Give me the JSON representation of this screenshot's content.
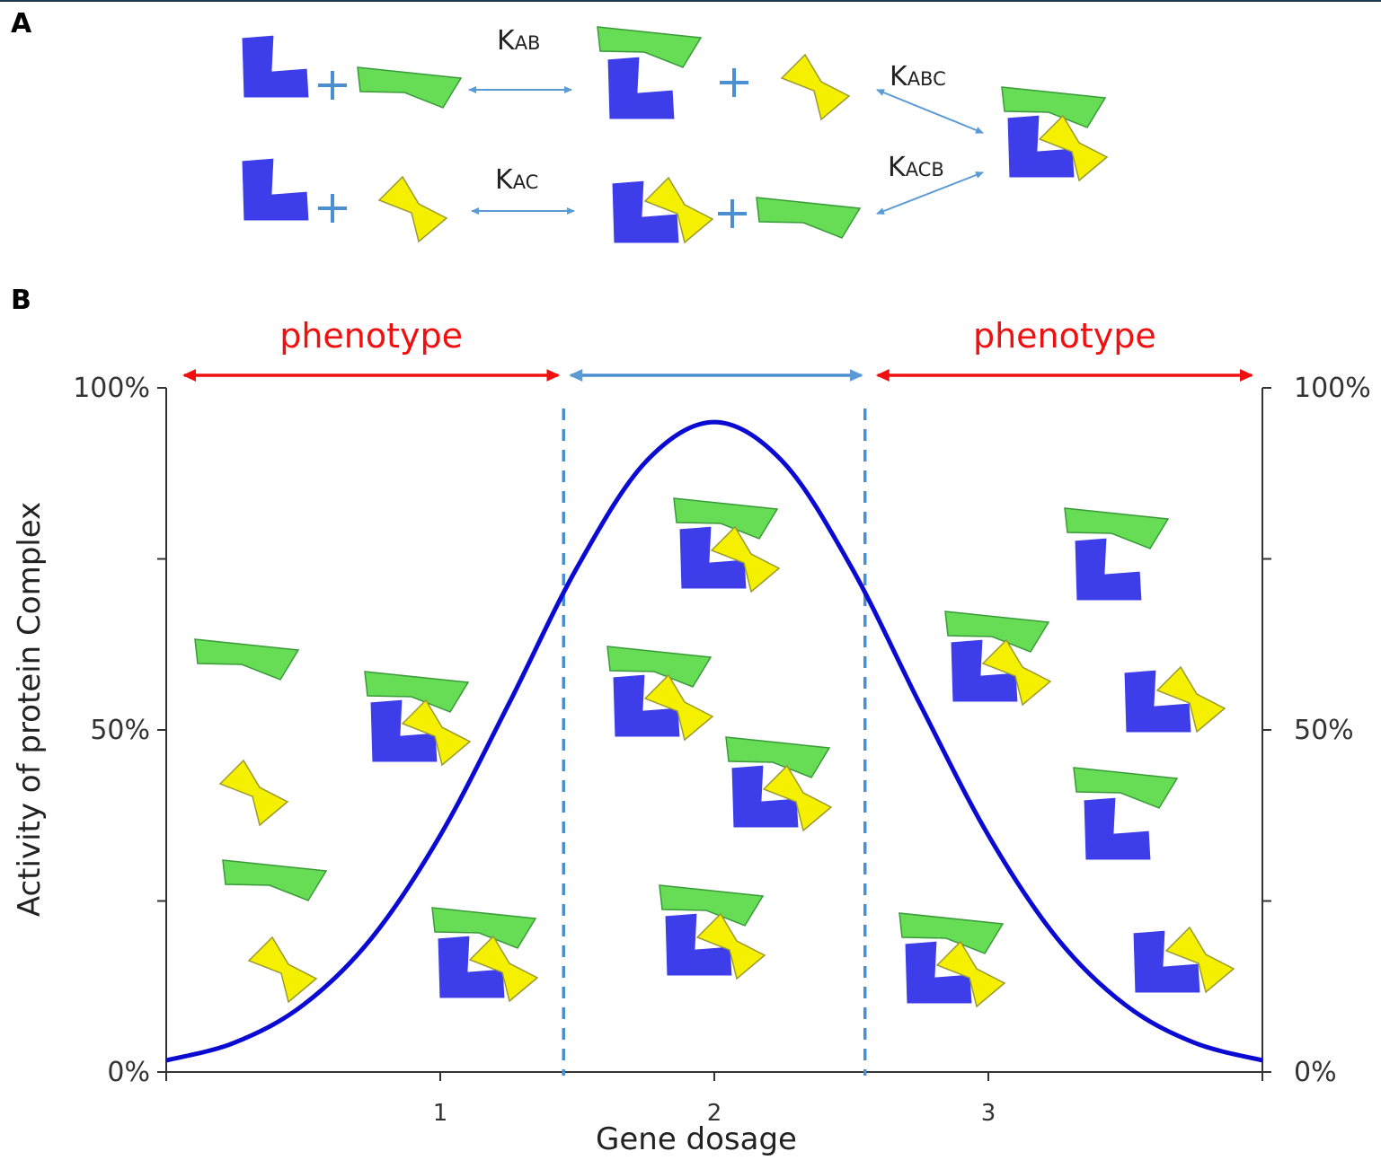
{
  "panel_a": {
    "label": "A",
    "rate_constants": [
      {
        "symbol": "K",
        "subscript": "AB"
      },
      {
        "symbol": "K",
        "subscript": "ABC"
      },
      {
        "symbol": "K",
        "subscript": "AC"
      },
      {
        "symbol": "K",
        "subscript": "ACB"
      }
    ]
  },
  "chart_data": {
    "type": "line",
    "panel_label": "B",
    "xlabel": "Gene dosage",
    "ylabel": "Activity of protein Complex",
    "x": [
      0,
      0.25,
      0.5,
      0.75,
      1,
      1.25,
      1.5,
      1.75,
      2,
      2.25,
      2.5,
      2.75,
      3,
      3.25,
      3.5,
      3.75,
      4
    ],
    "values": [
      1.7,
      4.3,
      9.8,
      19.6,
      34.6,
      53.8,
      73.8,
      89.2,
      95,
      89.2,
      73.8,
      53.8,
      34.6,
      19.6,
      9.8,
      4.3,
      1.7
    ],
    "color": "#0a0ad2",
    "xlim": [
      0,
      4
    ],
    "xticks": [
      1,
      2,
      3
    ],
    "ylim": [
      0,
      100
    ],
    "yticks": [
      {
        "value": 0,
        "label": "0%"
      },
      {
        "value": 50,
        "label": "50%"
      },
      {
        "value": 100,
        "label": "100%"
      }
    ],
    "minor_yticks": [
      25,
      75
    ],
    "y2lim": [
      0,
      100
    ],
    "y2ticks": [
      {
        "value": 0,
        "label": "0%"
      },
      {
        "value": 50,
        "label": "50%"
      },
      {
        "value": 100,
        "label": "100%"
      }
    ],
    "thresholds": [
      1.45,
      2.55
    ],
    "threshold_color": "#4a90d0",
    "annotations": [
      {
        "text": "phenotype",
        "color": "#f01010"
      },
      {
        "text": "phenotype",
        "color": "#f01010"
      }
    ]
  }
}
